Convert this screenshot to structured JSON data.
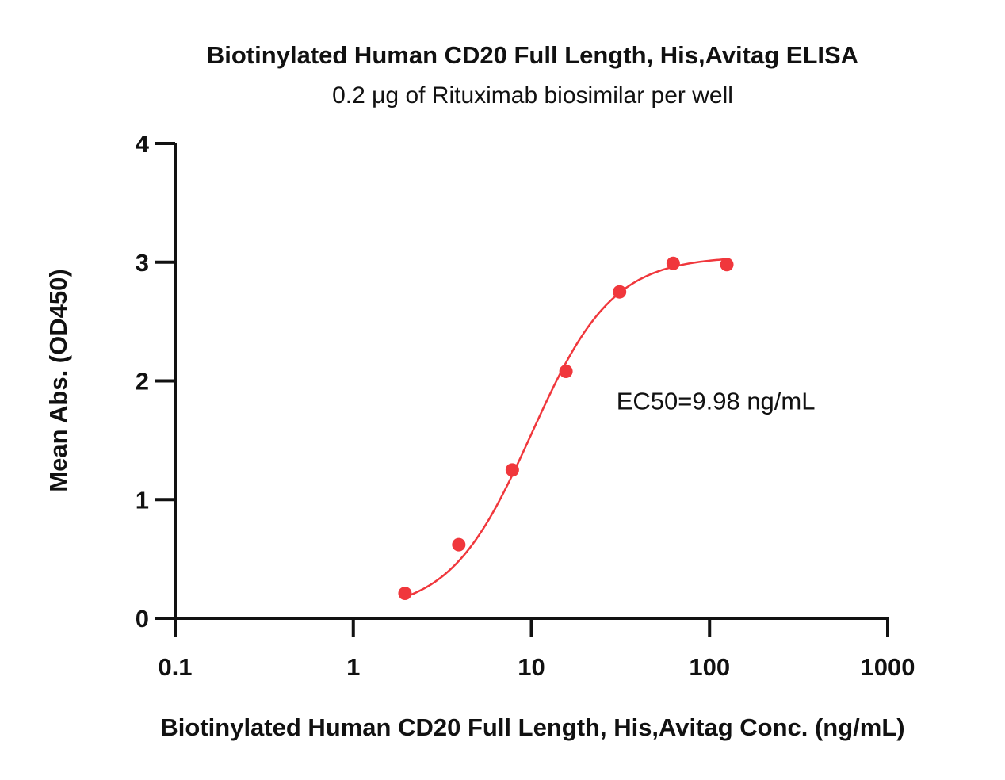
{
  "chart_data": {
    "type": "scatter",
    "title": "Biotinylated Human CD20 Full Length, His,Avitag ELISA",
    "subtitle": "0.2 μg of Rituximab biosimilar per well",
    "xlabel": "Biotinylated Human CD20 Full Length, His,Avitag Conc. (ng/mL)",
    "ylabel": "Mean Abs. (OD450)",
    "x_scale": "log",
    "xlim": [
      0.1,
      1000
    ],
    "ylim": [
      0,
      4
    ],
    "x_ticks": [
      0.1,
      1,
      10,
      100,
      1000
    ],
    "x_tick_labels": [
      "0.1",
      "1",
      "10",
      "100",
      "1000"
    ],
    "y_ticks": [
      0,
      1,
      2,
      3,
      4
    ],
    "y_tick_labels": [
      "0",
      "1",
      "2",
      "3",
      "4"
    ],
    "grid": false,
    "legend": "none",
    "series": [
      {
        "x": [
          1.95,
          3.91,
          7.81,
          15.63,
          31.25,
          62.5,
          125
        ],
        "y": [
          0.21,
          0.62,
          1.25,
          2.08,
          2.75,
          2.99,
          2.98
        ],
        "color": "#f0373c",
        "fit": "4PL",
        "fit_params": {
          "bottom": 0.05,
          "top": 3.05,
          "ec50": 9.98,
          "hill": 1.9
        }
      }
    ],
    "annotations": [
      {
        "text": "EC50=9.98 ng/mL",
        "x": 30,
        "y": 1.76
      }
    ]
  }
}
